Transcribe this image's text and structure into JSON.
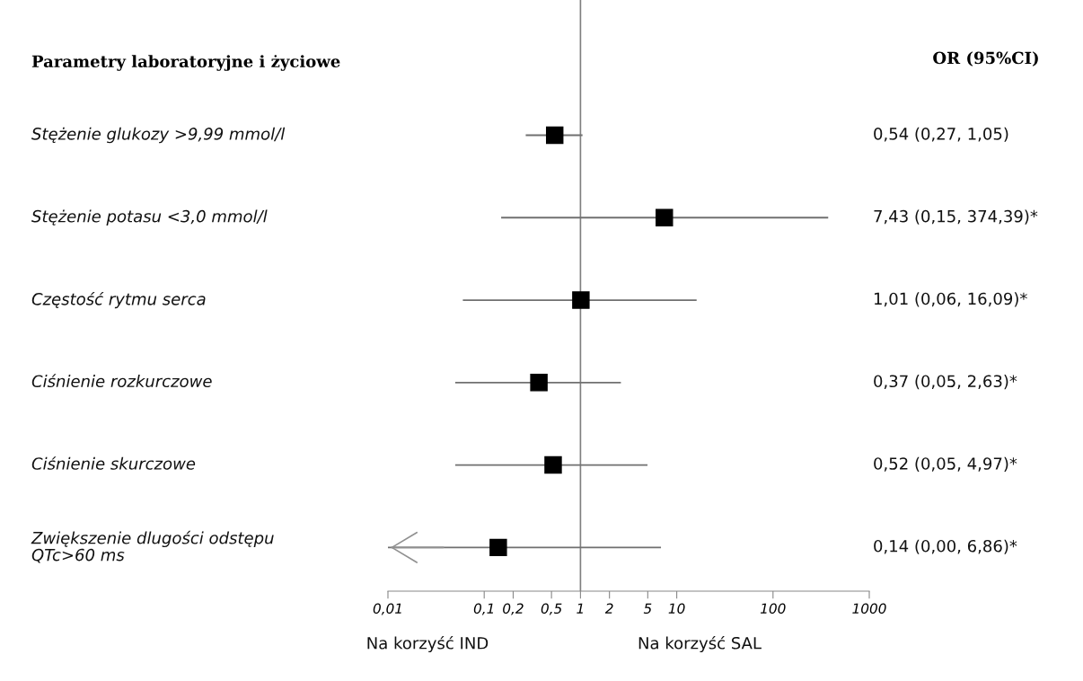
{
  "chart_data": {
    "type": "scatter",
    "orientation": "horizontal",
    "title": "Parametry laboratoryjne i życiowe",
    "subtitle": "OR (95%CI)",
    "categories": [
      "Stężenie glukozy >9,99 mmol/l",
      "Stężenie potasu <3,0 mmol/l",
      "Częstość rytmu serca",
      "Ciśnienie rozkurczowe",
      "Ciśnienie skurczowe",
      "Zwiększenie dlugości odstępu\nQTc>60 ms"
    ],
    "color": "#000000",
    "values": [
      0.54,
      7.43,
      1.01,
      0.37,
      0.52,
      0.14
    ],
    "errors": [
      [
        0.27,
        1.05
      ],
      [
        0.15,
        374.39
      ],
      [
        0.06,
        16.09
      ],
      [
        0.05,
        2.63
      ],
      [
        0.05,
        4.97
      ],
      [
        0.01,
        6.86
      ]
    ],
    "log": "x",
    "xlim": [
      0.01,
      1000
    ],
    "xticks": [
      {
        "value": 0.01,
        "label": "0,01"
      },
      {
        "value": 0.1,
        "label": "0,1"
      },
      {
        "value": 0.2,
        "label": "0,2"
      },
      {
        "value": 0.5,
        "label": "0,5"
      },
      1,
      2,
      5,
      10,
      100,
      1000
    ],
    "ref_lines": [
      {
        "axis": "x",
        "value": 1,
        "color": "#808080"
      }
    ],
    "marker": "square",
    "grid": false,
    "legend": false,
    "annotations": [
      "Na korzyść IND",
      "Na korzyść SAL",
      "0,54 (0,27, 1,05)",
      "7,43 (0,15, 374,39)*",
      "1,01 (0,06, 16,09)*",
      "0,37 (0,05, 2,63)*",
      "0,52 (0,05, 4,97)*",
      "0,14 (0,00, 6,86)*"
    ]
  }
}
